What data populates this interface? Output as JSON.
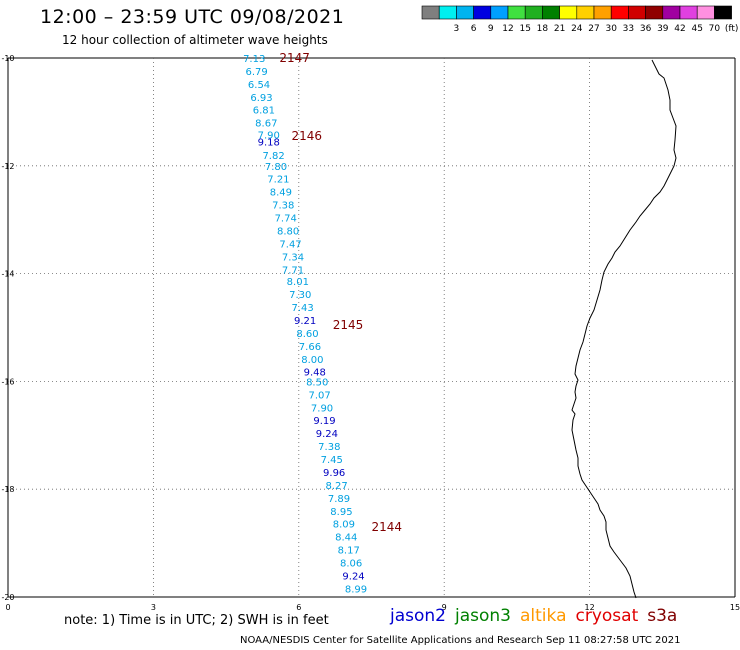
{
  "header": {
    "title": "12:00 – 23:59 UTC 09/08/2021",
    "subtitle": "12 hour collection of altimeter wave heights"
  },
  "legend": {
    "swatches": [
      {
        "color": "#7f7f7f",
        "label": ""
      },
      {
        "color": "#00f0f0",
        "label": "3"
      },
      {
        "color": "#00b4f0",
        "label": "6"
      },
      {
        "color": "#0000e0",
        "label": "9"
      },
      {
        "color": "#00a0ff",
        "label": "12"
      },
      {
        "color": "#40e040",
        "label": "15"
      },
      {
        "color": "#20b020",
        "label": "18"
      },
      {
        "color": "#008000",
        "label": "21"
      },
      {
        "color": "#ffff00",
        "label": "24"
      },
      {
        "color": "#ffd000",
        "label": "27"
      },
      {
        "color": "#ffa000",
        "label": "30"
      },
      {
        "color": "#ff0000",
        "label": "33"
      },
      {
        "color": "#d00000",
        "label": "36"
      },
      {
        "color": "#900000",
        "label": "39"
      },
      {
        "color": "#a000a0",
        "label": "42"
      },
      {
        "color": "#e040e0",
        "label": "45"
      },
      {
        "color": "#ff90e0",
        "label": "70"
      },
      {
        "color": "#000000",
        "label": "(ft)"
      }
    ]
  },
  "map": {
    "x_axis": {
      "range": [
        0,
        15
      ],
      "ticks": [
        "0",
        "3",
        "6",
        "9",
        "12",
        "15"
      ]
    },
    "y_axis": {
      "range": [
        -20,
        -10
      ],
      "ticks": [
        "-10",
        "-12",
        "-14",
        "-16",
        "-18",
        "-20"
      ]
    },
    "colors": {
      "light": "#00a0e0",
      "dark": "#0000c0",
      "pass": "#800000"
    },
    "pass_labels": [
      {
        "text": "2147",
        "x": 5.6,
        "y": -10.0
      },
      {
        "text": "2146",
        "x": 5.85,
        "y": -11.45
      },
      {
        "text": "2145",
        "x": 6.7,
        "y": -14.95
      },
      {
        "text": "2144",
        "x": 7.5,
        "y": -18.7
      }
    ],
    "points": [
      {
        "text": "7.13",
        "x": 4.85,
        "y": -10.0,
        "c": "light"
      },
      {
        "text": "6.79",
        "x": 4.9,
        "y": -10.24,
        "c": "light"
      },
      {
        "text": "6.54",
        "x": 4.95,
        "y": -10.48,
        "c": "light"
      },
      {
        "text": "6.93",
        "x": 5.0,
        "y": -10.72,
        "c": "light"
      },
      {
        "text": "6.81",
        "x": 5.05,
        "y": -10.96,
        "c": "light"
      },
      {
        "text": "8.67",
        "x": 5.1,
        "y": -11.2,
        "c": "light"
      },
      {
        "text": "7.90",
        "x": 5.15,
        "y": -11.42,
        "c": "light"
      },
      {
        "text": "9.18",
        "x": 5.15,
        "y": -11.55,
        "c": "dark"
      },
      {
        "text": "7.82",
        "x": 5.25,
        "y": -11.8,
        "c": "light"
      },
      {
        "text": "7.80",
        "x": 5.3,
        "y": -12.0,
        "c": "light"
      },
      {
        "text": "7.21",
        "x": 5.35,
        "y": -12.24,
        "c": "light"
      },
      {
        "text": "8.49",
        "x": 5.4,
        "y": -12.48,
        "c": "light"
      },
      {
        "text": "7.38",
        "x": 5.45,
        "y": -12.72,
        "c": "light"
      },
      {
        "text": "7.74",
        "x": 5.5,
        "y": -12.96,
        "c": "light"
      },
      {
        "text": "8.80",
        "x": 5.55,
        "y": -13.2,
        "c": "light"
      },
      {
        "text": "7.47",
        "x": 5.6,
        "y": -13.44,
        "c": "light"
      },
      {
        "text": "7.34",
        "x": 5.65,
        "y": -13.68,
        "c": "light"
      },
      {
        "text": "7.71",
        "x": 5.65,
        "y": -13.92,
        "c": "light"
      },
      {
        "text": "8.01",
        "x": 5.75,
        "y": -14.14,
        "c": "light"
      },
      {
        "text": "7.30",
        "x": 5.8,
        "y": -14.38,
        "c": "light"
      },
      {
        "text": "7.43",
        "x": 5.85,
        "y": -14.62,
        "c": "light"
      },
      {
        "text": "9.21",
        "x": 5.9,
        "y": -14.86,
        "c": "dark"
      },
      {
        "text": "8.60",
        "x": 5.95,
        "y": -15.1,
        "c": "light"
      },
      {
        "text": "7.66",
        "x": 6.0,
        "y": -15.34,
        "c": "light"
      },
      {
        "text": "8.00",
        "x": 6.05,
        "y": -15.58,
        "c": "light"
      },
      {
        "text": "9.48",
        "x": 6.1,
        "y": -15.82,
        "c": "dark"
      },
      {
        "text": "8.50",
        "x": 6.15,
        "y": -16.0,
        "c": "light"
      },
      {
        "text": "7.07",
        "x": 6.2,
        "y": -16.24,
        "c": "light"
      },
      {
        "text": "7.90",
        "x": 6.25,
        "y": -16.48,
        "c": "light"
      },
      {
        "text": "9.19",
        "x": 6.3,
        "y": -16.72,
        "c": "dark"
      },
      {
        "text": "9.24",
        "x": 6.35,
        "y": -16.96,
        "c": "dark"
      },
      {
        "text": "7.38",
        "x": 6.4,
        "y": -17.2,
        "c": "light"
      },
      {
        "text": "7.45",
        "x": 6.45,
        "y": -17.44,
        "c": "light"
      },
      {
        "text": "9.96",
        "x": 6.5,
        "y": -17.68,
        "c": "dark"
      },
      {
        "text": "8.27",
        "x": 6.55,
        "y": -17.92,
        "c": "light"
      },
      {
        "text": "7.89",
        "x": 6.6,
        "y": -18.16,
        "c": "light"
      },
      {
        "text": "8.95",
        "x": 6.65,
        "y": -18.4,
        "c": "light"
      },
      {
        "text": "8.09",
        "x": 6.7,
        "y": -18.64,
        "c": "light"
      },
      {
        "text": "8.44",
        "x": 6.75,
        "y": -18.88,
        "c": "light"
      },
      {
        "text": "8.17",
        "x": 6.8,
        "y": -19.12,
        "c": "light"
      },
      {
        "text": "8.06",
        "x": 6.85,
        "y": -19.36,
        "c": "light"
      },
      {
        "text": "9.24",
        "x": 6.9,
        "y": -19.6,
        "c": "dark"
      },
      {
        "text": "8.99",
        "x": 6.95,
        "y": -19.84,
        "c": "light"
      }
    ]
  },
  "footer": {
    "note": "note: 1) Time is in UTC; 2) SWH is in feet",
    "satellites": [
      {
        "name": "jason2",
        "color": "#0000d0"
      },
      {
        "name": "jason3",
        "color": "#008000"
      },
      {
        "name": "altika",
        "color": "#ff9900"
      },
      {
        "name": "cryosat",
        "color": "#e00000"
      },
      {
        "name": "s3a",
        "color": "#800000"
      }
    ],
    "credit": "NOAA/NESDIS Center for Satellite Applications and Research   Sep 11 08:27:58 UTC 2021"
  }
}
